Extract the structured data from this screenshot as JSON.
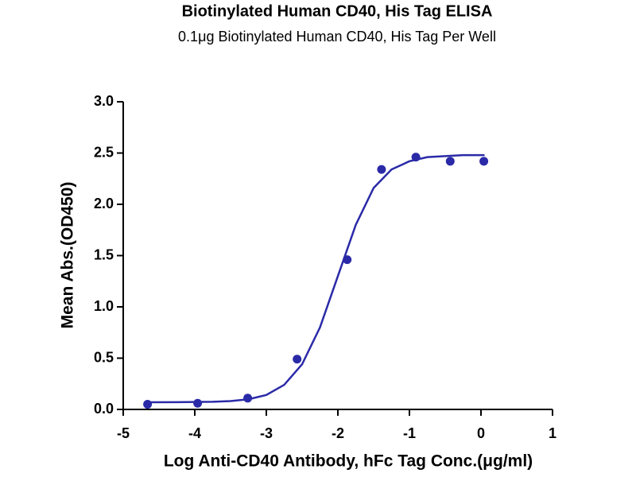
{
  "chart_data": {
    "type": "scatter",
    "title": "Biotinylated Human CD40, His Tag ELISA",
    "subtitle": "0.1μg Biotinylated Human CD40, His Tag Per Well",
    "x_label": "Log Anti-CD40 Antibody, hFc Tag Conc.(μg/ml)",
    "y_label": "Mean Abs.(OD450)",
    "color": "#2a2aa8",
    "points": {
      "x": [
        -4.66,
        -3.96,
        -3.26,
        -2.57,
        -1.87,
        -1.39,
        -0.91,
        -0.43,
        0.04
      ],
      "values": [
        0.05,
        0.06,
        0.11,
        0.49,
        1.46,
        2.34,
        2.46,
        2.42,
        2.42
      ]
    },
    "fit": {
      "x": [
        -4.7,
        -4.25,
        -3.75,
        -3.5,
        -3.25,
        -3.0,
        -2.75,
        -2.5,
        -2.25,
        -2.0,
        -1.75,
        -1.5,
        -1.25,
        -1.0,
        -0.75,
        -0.5,
        -0.25,
        0.05
      ],
      "values": [
        0.07,
        0.071,
        0.075,
        0.081,
        0.099,
        0.141,
        0.24,
        0.44,
        0.8,
        1.3,
        1.8,
        2.16,
        2.34,
        2.42,
        2.46,
        2.47,
        2.48,
        2.48
      ]
    },
    "xlim": [
      -5,
      1
    ],
    "xticks": [
      -5,
      -4,
      -3,
      -2,
      -1,
      0,
      1
    ],
    "ylim": [
      0,
      3
    ],
    "yticks": [
      {
        "value": 0,
        "label": "0.0"
      },
      {
        "value": 0.5,
        "label": "0.5"
      },
      {
        "value": 1,
        "label": "1.0"
      },
      {
        "value": 1.5,
        "label": "1.5"
      },
      {
        "value": 2,
        "label": "2.0"
      },
      {
        "value": 2.5,
        "label": "2.5"
      },
      {
        "value": 3,
        "label": "3.0"
      }
    ]
  }
}
